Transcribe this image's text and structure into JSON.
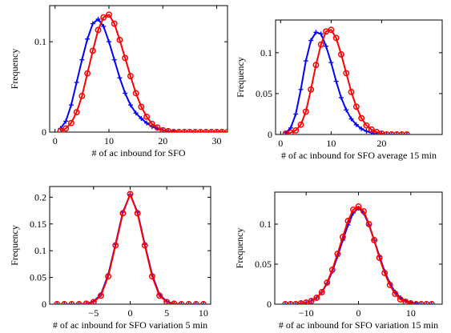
{
  "chart_data": [
    {
      "type": "line",
      "xlabel": "# of ac inbound for SFO",
      "ylabel": "Frequency",
      "xlim": [
        -1,
        32
      ],
      "ylim": [
        0,
        0.14
      ],
      "xticks": [
        0,
        10,
        20,
        30
      ],
      "yticks": [
        0,
        0.1
      ],
      "ytick_labels": [
        "0",
        "0.1"
      ],
      "grid": false,
      "series": [
        {
          "color": "#0000ff",
          "marker": "plus",
          "x": [
            1,
            2,
            3,
            4,
            5,
            6,
            7,
            8,
            9,
            10,
            11,
            12,
            13,
            14,
            15,
            16,
            17,
            18,
            19,
            20,
            21,
            22,
            23,
            24,
            25,
            26,
            27,
            28,
            29,
            30,
            31,
            32
          ],
          "y": [
            0.004,
            0.012,
            0.03,
            0.055,
            0.08,
            0.103,
            0.12,
            0.125,
            0.117,
            0.1,
            0.08,
            0.06,
            0.043,
            0.03,
            0.021,
            0.015,
            0.01,
            0.006,
            0.004,
            0.002,
            0.001,
            0.001,
            0,
            0,
            0,
            0,
            0,
            0,
            0,
            0,
            0,
            0
          ]
        },
        {
          "color": "#ff0000",
          "marker": "circle",
          "x": [
            1,
            2,
            3,
            4,
            5,
            6,
            7,
            8,
            9,
            10,
            11,
            12,
            13,
            14,
            15,
            16,
            17,
            18,
            19,
            20,
            21,
            22,
            23,
            24,
            25,
            26,
            27,
            28,
            29,
            30,
            31,
            32
          ],
          "y": [
            0.001,
            0.004,
            0.01,
            0.022,
            0.04,
            0.065,
            0.09,
            0.113,
            0.127,
            0.13,
            0.12,
            0.102,
            0.082,
            0.062,
            0.043,
            0.028,
            0.017,
            0.009,
            0.005,
            0.002,
            0.001,
            0,
            0,
            0,
            0,
            0,
            0,
            0,
            0,
            0,
            0,
            0
          ]
        }
      ]
    },
    {
      "type": "line",
      "xlabel": "# of ac inbound for SFO average 15 min",
      "ylabel": "Frequency",
      "xlim": [
        -1,
        32
      ],
      "ylim": [
        0,
        0.14
      ],
      "xticks": [
        0,
        10,
        20
      ],
      "yticks": [
        0,
        0.05,
        0.1
      ],
      "ytick_labels": [
        "0",
        "0.05",
        "0.1"
      ],
      "grid": false,
      "series": [
        {
          "color": "#0000ff",
          "marker": "plus",
          "x": [
            1,
            2,
            3,
            4,
            5,
            6,
            7,
            8,
            9,
            10,
            11,
            12,
            13,
            14,
            15,
            16,
            17,
            18,
            19,
            20,
            21,
            22,
            23,
            24,
            25
          ],
          "y": [
            0.002,
            0.008,
            0.025,
            0.055,
            0.09,
            0.115,
            0.125,
            0.123,
            0.108,
            0.088,
            0.065,
            0.045,
            0.03,
            0.019,
            0.012,
            0.007,
            0.004,
            0.002,
            0.001,
            0.001,
            0,
            0,
            0,
            0,
            0
          ]
        },
        {
          "color": "#ff0000",
          "marker": "circle",
          "x": [
            1,
            2,
            3,
            4,
            5,
            6,
            7,
            8,
            9,
            10,
            11,
            12,
            13,
            14,
            15,
            16,
            17,
            18,
            19,
            20,
            21,
            22,
            23,
            24,
            25
          ],
          "y": [
            0.001,
            0.002,
            0.005,
            0.012,
            0.028,
            0.055,
            0.085,
            0.11,
            0.126,
            0.128,
            0.118,
            0.098,
            0.075,
            0.052,
            0.034,
            0.02,
            0.011,
            0.006,
            0.003,
            0.001,
            0,
            0,
            0,
            0,
            0
          ]
        }
      ]
    },
    {
      "type": "line",
      "xlabel": "# of ac inbound for SFO variation 5 min",
      "ylabel": "Frequency",
      "xlim": [
        -11,
        11
      ],
      "ylim": [
        0,
        0.22
      ],
      "xticks": [
        -5,
        0,
        5,
        10
      ],
      "yticks": [
        0,
        0.05,
        0.1,
        0.15,
        0.2
      ],
      "ytick_labels": [
        "0",
        "0.05",
        "0.1",
        "0.15",
        "0.2"
      ],
      "grid": false,
      "series": [
        {
          "color": "#0000ff",
          "marker": "plus",
          "x": [
            -10,
            -9,
            -8,
            -7,
            -6,
            -5,
            -4,
            -3,
            -2,
            -1,
            0,
            1,
            2,
            3,
            4,
            5,
            6,
            7,
            8,
            9,
            10
          ],
          "y": [
            0,
            0,
            0,
            0,
            0.001,
            0.005,
            0.018,
            0.055,
            0.112,
            0.172,
            0.205,
            0.172,
            0.112,
            0.055,
            0.018,
            0.005,
            0.001,
            0,
            0,
            0,
            0
          ]
        },
        {
          "color": "#ff0000",
          "marker": "circle",
          "x": [
            -10,
            -9,
            -8,
            -7,
            -6,
            -5,
            -4,
            -3,
            -2,
            -1,
            0,
            1,
            2,
            3,
            4,
            5,
            6,
            7,
            8,
            9,
            10
          ],
          "y": [
            0,
            0,
            0,
            0,
            0.001,
            0.004,
            0.016,
            0.052,
            0.11,
            0.17,
            0.206,
            0.17,
            0.11,
            0.052,
            0.016,
            0.004,
            0.001,
            0,
            0,
            0,
            0
          ]
        }
      ]
    },
    {
      "type": "line",
      "xlabel": "# of ac inbound for SFO variation 15 min",
      "ylabel": "Frequency",
      "xlim": [
        -16,
        16
      ],
      "ylim": [
        0,
        0.14
      ],
      "xticks": [
        -10,
        0,
        10
      ],
      "yticks": [
        0,
        0.05,
        0.1
      ],
      "ytick_labels": [
        "0",
        "0.05",
        "0.1"
      ],
      "grid": false,
      "series": [
        {
          "color": "#0000ff",
          "marker": "plus",
          "x": [
            -14,
            -13,
            -12,
            -11,
            -10,
            -9,
            -8,
            -7,
            -6,
            -5,
            -4,
            -3,
            -2,
            -1,
            0,
            1,
            2,
            3,
            4,
            5,
            6,
            7,
            8,
            9,
            10,
            11,
            12,
            13,
            14
          ],
          "y": [
            0,
            0,
            0,
            0.001,
            0.002,
            0.004,
            0.008,
            0.015,
            0.026,
            0.041,
            0.06,
            0.08,
            0.099,
            0.114,
            0.12,
            0.114,
            0.099,
            0.08,
            0.06,
            0.041,
            0.026,
            0.015,
            0.008,
            0.004,
            0.002,
            0.001,
            0,
            0,
            0
          ]
        },
        {
          "color": "#ff0000",
          "marker": "circle",
          "x": [
            -14,
            -13,
            -12,
            -11,
            -10,
            -9,
            -8,
            -7,
            -6,
            -5,
            -4,
            -3,
            -2,
            -1,
            0,
            1,
            2,
            3,
            4,
            5,
            6,
            7,
            8,
            9,
            10,
            11,
            12,
            13,
            14
          ],
          "y": [
            0,
            0,
            0,
            0.001,
            0.002,
            0.004,
            0.008,
            0.015,
            0.027,
            0.043,
            0.063,
            0.084,
            0.104,
            0.118,
            0.122,
            0.116,
            0.1,
            0.08,
            0.058,
            0.039,
            0.024,
            0.013,
            0.006,
            0.003,
            0.001,
            0,
            0,
            0,
            0
          ]
        }
      ]
    }
  ]
}
